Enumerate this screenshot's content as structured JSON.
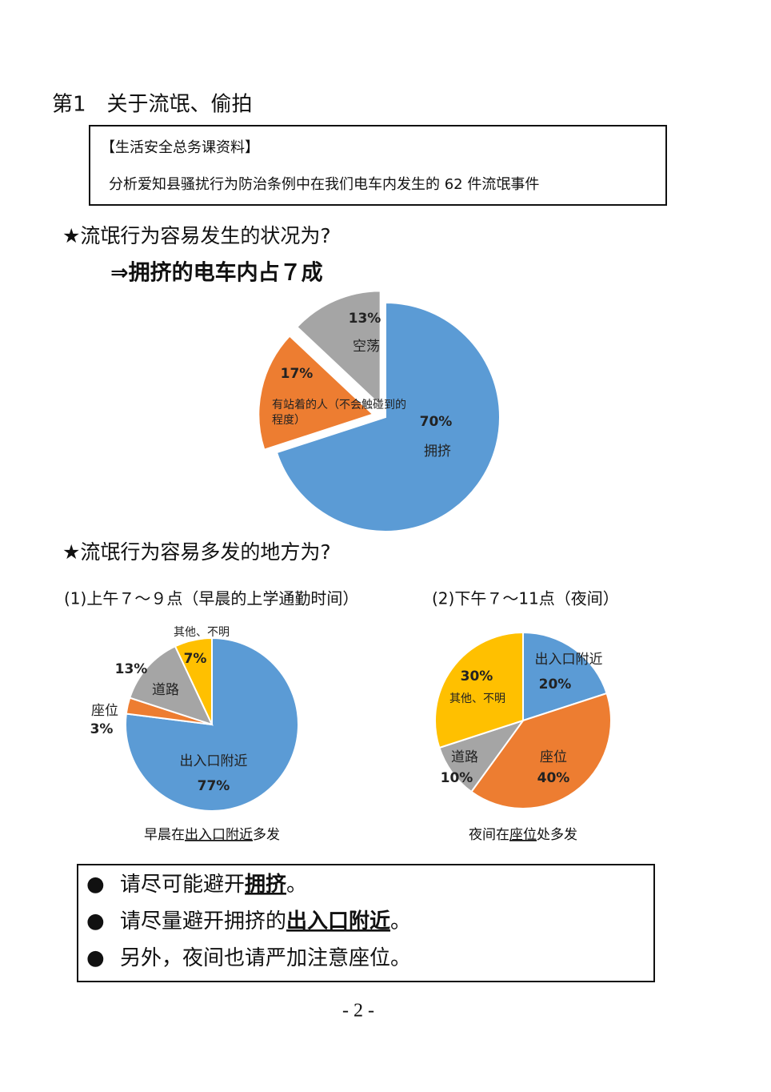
{
  "section_title": "第1　关于流氓、偷拍",
  "source_box": {
    "label": "【生活安全总务课资料】",
    "text": "分析爱知县骚扰行为防治条例中在我们电车内发生的 62 件流氓事件"
  },
  "heading_1": "★流氓行为容易发生的状况为?",
  "conclusion_1": "⇒拥挤的电车内占７成",
  "heading_2": "★流氓行为容易多发的地方为?",
  "chart_data": [
    {
      "type": "pie",
      "categories": [
        "拥挤",
        "有站着的人（不会触碰到的程度）",
        "空荡"
      ],
      "values": [
        70,
        17,
        13
      ],
      "value_labels": [
        "70%",
        "17%",
        "13%"
      ],
      "colors": [
        "#5b9bd5",
        "#ed7d31",
        "#a5a5a5"
      ]
    },
    {
      "type": "pie",
      "title": "(1)上午７～９点（早晨的上学通勤时间）",
      "categories": [
        "出入口附近",
        "座位",
        "道路",
        "其他、不明"
      ],
      "values": [
        77,
        3,
        13,
        7
      ],
      "value_labels": [
        "77%",
        "3%",
        "13%",
        "7%"
      ],
      "colors": [
        "#5b9bd5",
        "#ed7d31",
        "#a5a5a5",
        "#ffc000"
      ]
    },
    {
      "type": "pie",
      "title": "(2)下午７～11点（夜间）",
      "categories": [
        "出入口附近",
        "座位",
        "道路",
        "其他、不明"
      ],
      "values": [
        20,
        40,
        10,
        30
      ],
      "value_labels": [
        "20%",
        "40%",
        "10%",
        "30%"
      ],
      "colors": [
        "#5b9bd5",
        "#ed7d31",
        "#a5a5a5",
        "#ffc000"
      ]
    }
  ],
  "captions": [
    [
      "早晨在",
      "出入口附近",
      "多发"
    ],
    [
      "夜间在",
      "座位",
      "处多发"
    ]
  ],
  "notes": [
    {
      "bullet": "●",
      "parts": [
        "请尽可能避开",
        "拥挤",
        "。"
      ]
    },
    {
      "bullet": "●",
      "parts": [
        "请尽量避开拥挤的",
        "出入口附近",
        "。"
      ]
    },
    {
      "bullet": "●",
      "parts": [
        "另外，夜间也请严加注意座位。"
      ]
    }
  ],
  "page_number": "- 2 -"
}
